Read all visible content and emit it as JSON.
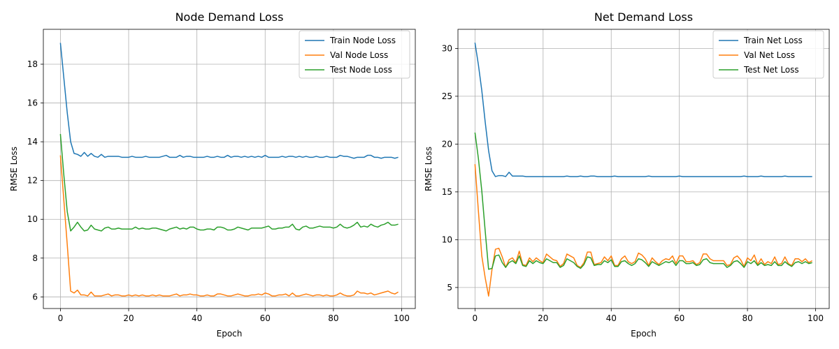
{
  "chart_data": [
    {
      "type": "line",
      "title": "Node Demand Loss",
      "xlabel": "Epoch",
      "ylabel": "RMSE Loss",
      "xlim": [
        -5,
        104
      ],
      "ylim": [
        5.4,
        19.8
      ],
      "xticks": [
        0,
        20,
        40,
        60,
        80,
        100
      ],
      "xtick_labels": [
        "0",
        "20",
        "40",
        "60",
        "80",
        "100"
      ],
      "yticks": [
        6,
        8,
        10,
        12,
        14,
        16,
        18
      ],
      "ytick_labels": [
        "6",
        "8",
        "10",
        "12",
        "14",
        "16",
        "18"
      ],
      "grid": true,
      "legend": "top-right",
      "series": [
        {
          "name": "Train Node Loss",
          "color": "#1f77b4",
          "values": [
            19.1,
            17.3,
            15.5,
            14.0,
            13.4,
            13.35,
            13.25,
            13.45,
            13.25,
            13.4,
            13.25,
            13.2,
            13.35,
            13.2,
            13.25,
            13.25,
            13.25,
            13.25,
            13.2,
            13.2,
            13.2,
            13.25,
            13.2,
            13.2,
            13.2,
            13.25,
            13.2,
            13.2,
            13.2,
            13.2,
            13.25,
            13.3,
            13.2,
            13.2,
            13.2,
            13.3,
            13.2,
            13.25,
            13.25,
            13.2,
            13.2,
            13.2,
            13.2,
            13.25,
            13.2,
            13.2,
            13.25,
            13.2,
            13.2,
            13.3,
            13.2,
            13.25,
            13.25,
            13.2,
            13.25,
            13.2,
            13.25,
            13.2,
            13.25,
            13.2,
            13.3,
            13.2,
            13.2,
            13.2,
            13.2,
            13.25,
            13.2,
            13.25,
            13.25,
            13.2,
            13.25,
            13.2,
            13.25,
            13.2,
            13.2,
            13.25,
            13.2,
            13.2,
            13.25,
            13.2,
            13.2,
            13.2,
            13.3,
            13.25,
            13.25,
            13.2,
            13.15,
            13.2,
            13.2,
            13.2,
            13.3,
            13.3,
            13.2,
            13.2,
            13.15,
            13.2,
            13.2,
            13.2,
            13.15,
            13.2
          ]
        },
        {
          "name": "Val Node Loss",
          "color": "#ff7f0e",
          "values": [
            13.3,
            11.0,
            8.7,
            6.3,
            6.2,
            6.35,
            6.1,
            6.1,
            6.05,
            6.25,
            6.05,
            6.05,
            6.05,
            6.1,
            6.15,
            6.05,
            6.1,
            6.1,
            6.05,
            6.05,
            6.1,
            6.05,
            6.1,
            6.05,
            6.1,
            6.05,
            6.05,
            6.1,
            6.05,
            6.1,
            6.05,
            6.05,
            6.05,
            6.1,
            6.15,
            6.05,
            6.1,
            6.1,
            6.15,
            6.1,
            6.1,
            6.05,
            6.05,
            6.1,
            6.05,
            6.05,
            6.15,
            6.15,
            6.1,
            6.05,
            6.05,
            6.1,
            6.15,
            6.1,
            6.05,
            6.05,
            6.1,
            6.1,
            6.15,
            6.1,
            6.2,
            6.15,
            6.05,
            6.05,
            6.1,
            6.1,
            6.15,
            6.05,
            6.2,
            6.05,
            6.05,
            6.1,
            6.15,
            6.1,
            6.05,
            6.1,
            6.1,
            6.05,
            6.1,
            6.05,
            6.05,
            6.1,
            6.2,
            6.1,
            6.05,
            6.05,
            6.1,
            6.3,
            6.2,
            6.2,
            6.15,
            6.2,
            6.1,
            6.15,
            6.2,
            6.25,
            6.3,
            6.2,
            6.15,
            6.25
          ]
        },
        {
          "name": "Test Node Loss",
          "color": "#2ca02c",
          "values": [
            14.4,
            12.3,
            10.4,
            9.4,
            9.6,
            9.85,
            9.6,
            9.4,
            9.45,
            9.7,
            9.5,
            9.45,
            9.4,
            9.55,
            9.6,
            9.5,
            9.5,
            9.55,
            9.5,
            9.5,
            9.5,
            9.5,
            9.6,
            9.5,
            9.55,
            9.5,
            9.5,
            9.55,
            9.55,
            9.5,
            9.45,
            9.4,
            9.5,
            9.55,
            9.6,
            9.5,
            9.55,
            9.5,
            9.6,
            9.6,
            9.5,
            9.45,
            9.45,
            9.5,
            9.5,
            9.45,
            9.6,
            9.6,
            9.55,
            9.45,
            9.45,
            9.5,
            9.6,
            9.55,
            9.5,
            9.45,
            9.55,
            9.55,
            9.55,
            9.55,
            9.6,
            9.65,
            9.5,
            9.5,
            9.55,
            9.55,
            9.6,
            9.6,
            9.75,
            9.5,
            9.45,
            9.6,
            9.65,
            9.55,
            9.55,
            9.6,
            9.65,
            9.6,
            9.6,
            9.6,
            9.55,
            9.6,
            9.75,
            9.6,
            9.55,
            9.6,
            9.7,
            9.85,
            9.6,
            9.65,
            9.6,
            9.75,
            9.65,
            9.6,
            9.7,
            9.75,
            9.85,
            9.7,
            9.7,
            9.75
          ]
        }
      ]
    },
    {
      "type": "line",
      "title": "Net Demand Loss",
      "xlabel": "Epoch",
      "ylabel": "RMSE Loss",
      "xlim": [
        -5,
        104
      ],
      "ylim": [
        2.8,
        32.0
      ],
      "xticks": [
        0,
        20,
        40,
        60,
        80,
        100
      ],
      "xtick_labels": [
        "0",
        "20",
        "40",
        "60",
        "80",
        "100"
      ],
      "yticks": [
        5,
        10,
        15,
        20,
        25,
        30
      ],
      "ytick_labels": [
        "5",
        "10",
        "15",
        "20",
        "25",
        "30"
      ],
      "grid": true,
      "legend": "top-right",
      "series": [
        {
          "name": "Train Net Loss",
          "color": "#1f77b4",
          "values": [
            30.6,
            28.3,
            25.6,
            22.3,
            19.3,
            17.2,
            16.6,
            16.7,
            16.7,
            16.6,
            17.05,
            16.65,
            16.65,
            16.65,
            16.65,
            16.6,
            16.6,
            16.6,
            16.6,
            16.6,
            16.6,
            16.6,
            16.6,
            16.6,
            16.6,
            16.6,
            16.6,
            16.65,
            16.6,
            16.6,
            16.6,
            16.65,
            16.6,
            16.6,
            16.65,
            16.65,
            16.6,
            16.6,
            16.6,
            16.6,
            16.6,
            16.65,
            16.6,
            16.6,
            16.6,
            16.6,
            16.6,
            16.6,
            16.6,
            16.6,
            16.6,
            16.65,
            16.6,
            16.6,
            16.6,
            16.6,
            16.6,
            16.6,
            16.6,
            16.6,
            16.65,
            16.6,
            16.6,
            16.6,
            16.6,
            16.6,
            16.6,
            16.6,
            16.6,
            16.6,
            16.6,
            16.6,
            16.6,
            16.6,
            16.6,
            16.6,
            16.6,
            16.6,
            16.6,
            16.65,
            16.6,
            16.6,
            16.6,
            16.6,
            16.65,
            16.6,
            16.6,
            16.6,
            16.6,
            16.6,
            16.6,
            16.65,
            16.6,
            16.6,
            16.6,
            16.6,
            16.6,
            16.6,
            16.6,
            16.6
          ]
        },
        {
          "name": "Val Net Loss",
          "color": "#ff7f0e",
          "values": [
            17.9,
            13.0,
            8.3,
            6.0,
            4.1,
            6.9,
            9.0,
            9.1,
            8.2,
            7.1,
            7.9,
            8.1,
            7.6,
            8.8,
            7.4,
            7.3,
            8.1,
            7.7,
            8.1,
            7.8,
            7.6,
            8.5,
            8.2,
            7.9,
            7.8,
            7.2,
            7.5,
            8.5,
            8.3,
            8.1,
            7.3,
            7.1,
            7.6,
            8.7,
            8.7,
            7.4,
            7.5,
            7.6,
            8.2,
            7.8,
            8.3,
            7.3,
            7.3,
            8.0,
            8.3,
            7.7,
            7.5,
            7.7,
            8.6,
            8.4,
            8.0,
            7.3,
            8.1,
            7.7,
            7.4,
            7.8,
            8.0,
            7.9,
            8.3,
            7.5,
            8.3,
            8.3,
            7.7,
            7.7,
            7.8,
            7.4,
            7.6,
            8.5,
            8.5,
            8.0,
            7.8,
            7.8,
            7.8,
            7.8,
            7.3,
            7.4,
            8.1,
            8.3,
            7.9,
            7.2,
            8.1,
            7.8,
            8.4,
            7.4,
            8.0,
            7.4,
            7.7,
            7.5,
            8.2,
            7.4,
            7.5,
            8.2,
            7.5,
            7.3,
            8.0,
            8.0,
            7.7,
            8.0,
            7.6,
            7.8
          ]
        },
        {
          "name": "Test Net Loss",
          "color": "#2ca02c",
          "values": [
            21.2,
            18.5,
            15.1,
            10.9,
            6.9,
            7.0,
            8.3,
            8.4,
            7.6,
            7.1,
            7.6,
            7.8,
            7.5,
            8.3,
            7.3,
            7.2,
            7.8,
            7.5,
            7.8,
            7.6,
            7.5,
            8.0,
            7.8,
            7.6,
            7.6,
            7.1,
            7.3,
            8.0,
            7.8,
            7.6,
            7.2,
            7.0,
            7.4,
            8.2,
            8.1,
            7.3,
            7.4,
            7.4,
            7.8,
            7.6,
            7.9,
            7.2,
            7.2,
            7.7,
            7.8,
            7.5,
            7.3,
            7.5,
            8.0,
            7.9,
            7.6,
            7.2,
            7.7,
            7.5,
            7.3,
            7.5,
            7.7,
            7.6,
            7.8,
            7.3,
            7.8,
            7.8,
            7.5,
            7.5,
            7.6,
            7.3,
            7.4,
            7.9,
            8.0,
            7.6,
            7.5,
            7.5,
            7.5,
            7.5,
            7.1,
            7.3,
            7.7,
            7.8,
            7.5,
            7.1,
            7.7,
            7.5,
            7.8,
            7.3,
            7.6,
            7.3,
            7.4,
            7.3,
            7.7,
            7.3,
            7.3,
            7.7,
            7.4,
            7.2,
            7.6,
            7.7,
            7.5,
            7.7,
            7.5,
            7.6
          ]
        }
      ]
    }
  ]
}
